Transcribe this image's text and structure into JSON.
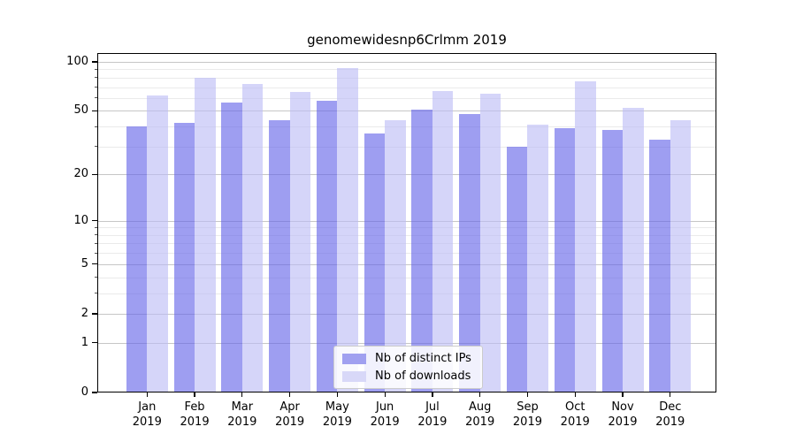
{
  "chart_data": {
    "type": "bar",
    "title": "genomewidesnp6Crlmm 2019",
    "categories": [
      "Jan",
      "Feb",
      "Mar",
      "Apr",
      "May",
      "Jun",
      "Jul",
      "Aug",
      "Sep",
      "Oct",
      "Nov",
      "Dec"
    ],
    "x_year": "2019",
    "series": [
      {
        "name": "Nb of distinct IPs",
        "color": "#a0a0f0",
        "fill": "rgba(99,99,232,0.62)",
        "values": [
          40,
          42,
          56,
          44,
          58,
          36,
          51,
          48,
          30,
          39,
          38,
          33
        ]
      },
      {
        "name": "Nb of downloads",
        "color": "#d8d8f8",
        "fill": "rgba(188,188,246,0.62)",
        "values": [
          62,
          80,
          73,
          65,
          92,
          44,
          66,
          64,
          41,
          76,
          52,
          44
        ]
      }
    ],
    "y_scale": "log1p",
    "y_ticks": [
      0,
      1,
      2,
      5,
      10,
      20,
      50,
      100
    ],
    "y_minor_gridlines": [
      3,
      4,
      6,
      7,
      8,
      9,
      30,
      40,
      60,
      70,
      80,
      90
    ],
    "ylim": [
      0,
      113
    ],
    "grid": true,
    "legend_position": "lower center",
    "colors": {
      "major_grid": "#c6c6c6",
      "minor_grid": "#eaeaea",
      "axis": "#000000",
      "text": "#000000",
      "background": "#ffffff"
    }
  }
}
